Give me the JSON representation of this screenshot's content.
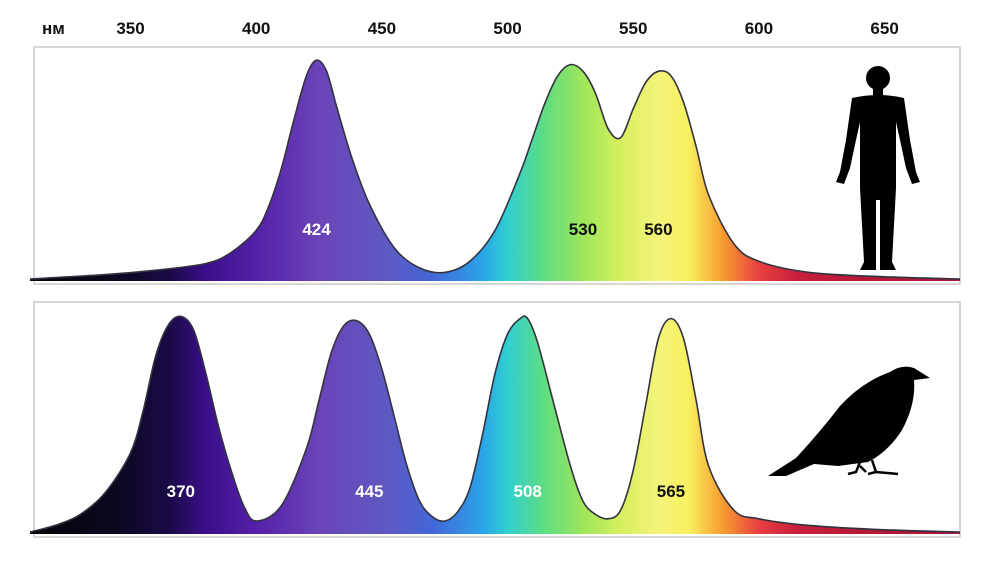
{
  "chart_data": {
    "type": "area",
    "xlabel": "нм",
    "xlim": [
      310,
      680
    ],
    "x_ticks": [
      350,
      400,
      450,
      500,
      550,
      600,
      650
    ],
    "panels": [
      {
        "subject": "human",
        "icon": "human-silhouette-icon",
        "series": [
          {
            "peak_nm": 424,
            "label": "424",
            "label_color": "#ffffff"
          },
          {
            "peak_nm": 530,
            "label": "530",
            "label_color": "#111111"
          },
          {
            "peak_nm": 560,
            "label": "560",
            "label_color": "#111111"
          }
        ],
        "curve": {
          "x": [
            310,
            340,
            360,
            380,
            390,
            400,
            405,
            410,
            415,
            420,
            424,
            428,
            432,
            438,
            445,
            455,
            465,
            475,
            485,
            495,
            505,
            510,
            515,
            520,
            525,
            530,
            535,
            540,
            545,
            550,
            555,
            560,
            565,
            570,
            575,
            580,
            590,
            600,
            620,
            650,
            680
          ],
          "y": [
            0.0,
            0.02,
            0.04,
            0.07,
            0.12,
            0.22,
            0.33,
            0.5,
            0.72,
            0.92,
            0.99,
            0.94,
            0.78,
            0.55,
            0.34,
            0.14,
            0.05,
            0.03,
            0.08,
            0.22,
            0.48,
            0.64,
            0.8,
            0.92,
            0.97,
            0.94,
            0.84,
            0.68,
            0.64,
            0.77,
            0.89,
            0.94,
            0.92,
            0.8,
            0.6,
            0.38,
            0.16,
            0.08,
            0.03,
            0.01,
            0.0
          ]
        }
      },
      {
        "subject": "bird",
        "icon": "bird-silhouette-icon",
        "series": [
          {
            "peak_nm": 370,
            "label": "370",
            "label_color": "#ffffff"
          },
          {
            "peak_nm": 445,
            "label": "445",
            "label_color": "#ffffff"
          },
          {
            "peak_nm": 508,
            "label": "508",
            "label_color": "#ffffff"
          },
          {
            "peak_nm": 565,
            "label": "565",
            "label_color": "#111111"
          }
        ],
        "curve": {
          "x": [
            310,
            320,
            330,
            340,
            350,
            355,
            360,
            365,
            370,
            375,
            380,
            385,
            390,
            395,
            400,
            410,
            420,
            425,
            430,
            435,
            440,
            445,
            450,
            455,
            460,
            465,
            470,
            475,
            480,
            485,
            490,
            495,
            500,
            505,
            508,
            512,
            518,
            525,
            530,
            535,
            540,
            545,
            550,
            555,
            560,
            565,
            570,
            575,
            580,
            590,
            600,
            620,
            650,
            680
          ],
          "y": [
            0.0,
            0.03,
            0.08,
            0.18,
            0.36,
            0.55,
            0.8,
            0.94,
            0.98,
            0.92,
            0.72,
            0.48,
            0.28,
            0.12,
            0.05,
            0.12,
            0.38,
            0.6,
            0.82,
            0.94,
            0.96,
            0.9,
            0.74,
            0.52,
            0.3,
            0.14,
            0.07,
            0.05,
            0.09,
            0.2,
            0.44,
            0.72,
            0.9,
            0.97,
            0.97,
            0.86,
            0.6,
            0.3,
            0.14,
            0.08,
            0.06,
            0.1,
            0.28,
            0.58,
            0.88,
            0.97,
            0.88,
            0.6,
            0.3,
            0.1,
            0.06,
            0.03,
            0.01,
            0.0
          ]
        }
      }
    ]
  }
}
